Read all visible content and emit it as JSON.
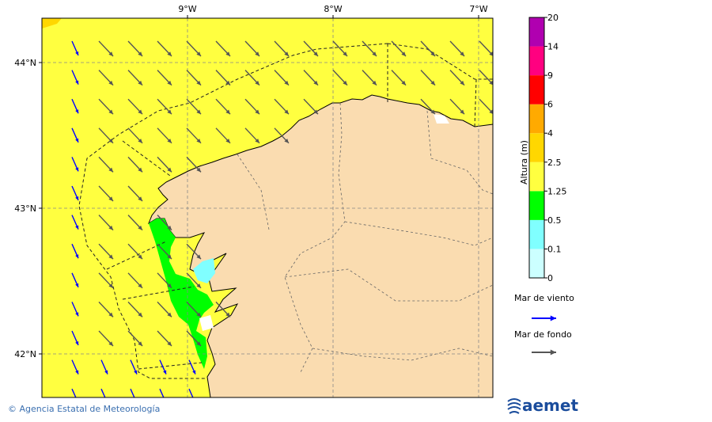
{
  "map": {
    "lon_labels": [
      "9°W",
      "8°W",
      "7°W"
    ],
    "lat_labels": [
      "44°N",
      "43°N",
      "42°N"
    ]
  },
  "colorbar": {
    "title": "Altura (m)",
    "levels": [
      0,
      0.1,
      0.5,
      1.25,
      2.5,
      4,
      6,
      9,
      14,
      20
    ],
    "colors": [
      "#ccffff",
      "#80ffff",
      "#00ff00",
      "#ffff40",
      "#ffd700",
      "#ffaa00",
      "#ff0000",
      "#ff0080",
      "#b000b0"
    ]
  },
  "legend": {
    "items": [
      {
        "label": "Mar de viento",
        "color": "#0000ff"
      },
      {
        "label": "Mar de fondo",
        "color": "#555555"
      }
    ]
  },
  "footer": {
    "credit": "© Agencia Estatal de Meteorología",
    "logo": "aemet"
  }
}
